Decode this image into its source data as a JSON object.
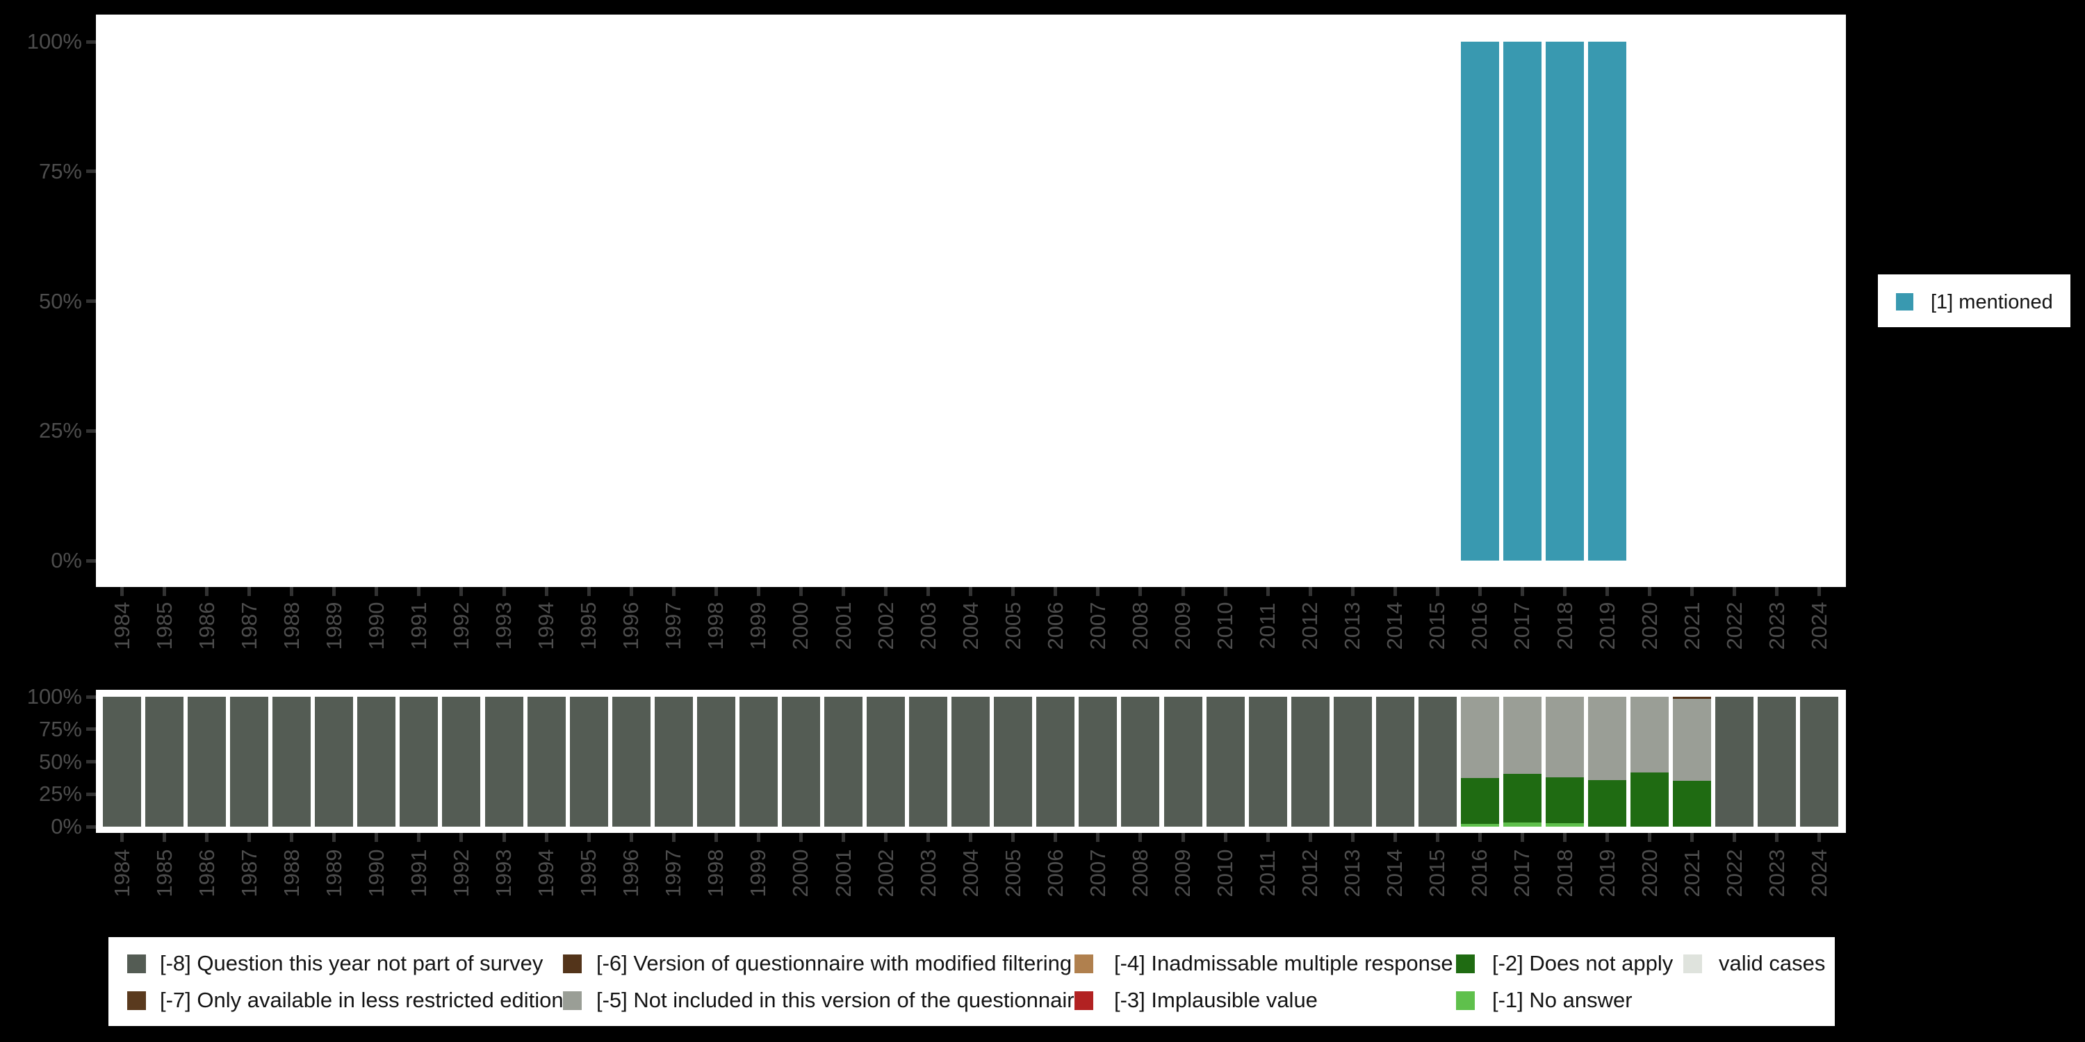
{
  "page": {
    "background_color": "#000000",
    "panel_color": "#ffffff",
    "axis_text_color": "#4d4d4d",
    "tick_color": "#333333",
    "legend_text_color": "#141414"
  },
  "colors": {
    "mentioned": "#3999B0",
    "-8": "#545C54",
    "-7": "#5A3A1E",
    "-6": "#53341A",
    "-5": "#9A9E96",
    "-4": "#B0804E",
    "-3": "#B22222",
    "-2": "#1F6B12",
    "-1": "#5FC04C",
    "valid": "#DFE3DD"
  },
  "chart_data": [
    {
      "type": "bar",
      "title": "",
      "xlabel": "",
      "ylabel": "",
      "ylim": [
        0,
        100
      ],
      "grid": false,
      "yticks": [
        "0%",
        "25%",
        "50%",
        "75%",
        "100%"
      ],
      "categories": [
        "1984",
        "1985",
        "1986",
        "1987",
        "1988",
        "1989",
        "1990",
        "1991",
        "1992",
        "1993",
        "1994",
        "1995",
        "1996",
        "1997",
        "1998",
        "1999",
        "2000",
        "2001",
        "2002",
        "2003",
        "2004",
        "2005",
        "2006",
        "2007",
        "2008",
        "2009",
        "2010",
        "2011",
        "2012",
        "2013",
        "2014",
        "2015",
        "2016",
        "2017",
        "2018",
        "2019",
        "2020",
        "2021",
        "2022",
        "2023",
        "2024"
      ],
      "legend_label": "[1] mentioned",
      "legend_position": "right",
      "series_note": "percent of valid cases answering [1] mentioned; bars only for 2016-2019 at 100%",
      "stacks_default": [],
      "stacks": {
        "2016": [
          [
            "mentioned",
            100
          ]
        ],
        "2017": [
          [
            "mentioned",
            100
          ]
        ],
        "2018": [
          [
            "mentioned",
            100
          ]
        ],
        "2019": [
          [
            "mentioned",
            100
          ]
        ]
      }
    },
    {
      "type": "stacked-bar-100",
      "title": "",
      "xlabel": "",
      "ylabel": "",
      "ylim": [
        0,
        100
      ],
      "grid": false,
      "yticks": [
        "0%",
        "25%",
        "50%",
        "75%",
        "100%"
      ],
      "categories": [
        "1984",
        "1985",
        "1986",
        "1987",
        "1988",
        "1989",
        "1990",
        "1991",
        "1992",
        "1993",
        "1994",
        "1995",
        "1996",
        "1997",
        "1998",
        "1999",
        "2000",
        "2001",
        "2002",
        "2003",
        "2004",
        "2005",
        "2006",
        "2007",
        "2008",
        "2009",
        "2010",
        "2011",
        "2012",
        "2013",
        "2014",
        "2015",
        "2016",
        "2017",
        "2018",
        "2019",
        "2020",
        "2021",
        "2022",
        "2023",
        "2024"
      ],
      "legend_position": "bottom",
      "stacks_note": "segments listed bottom-to-top as [category,percent]",
      "stacks_default": [
        [
          "-8",
          100
        ]
      ],
      "stacks": {
        "2016": [
          [
            "-1",
            2
          ],
          [
            "-2",
            35.5
          ],
          [
            "-5",
            62.5
          ]
        ],
        "2017": [
          [
            "-1",
            3
          ],
          [
            "-2",
            37.5
          ],
          [
            "-5",
            59.5
          ]
        ],
        "2018": [
          [
            "-1",
            2.5
          ],
          [
            "-2",
            35.5
          ],
          [
            "-5",
            62
          ]
        ],
        "2019": [
          [
            "-2",
            36
          ],
          [
            "-5",
            64
          ]
        ],
        "2020": [
          [
            "-2",
            41.5
          ],
          [
            "-5",
            58.5
          ]
        ],
        "2021": [
          [
            "-2",
            35.5
          ],
          [
            "-5",
            63
          ],
          [
            "-6",
            1.5
          ]
        ]
      },
      "legend_items": [
        {
          "key": "-8",
          "label": "[-8] Question this year not part of survey",
          "col": 0,
          "row": 0
        },
        {
          "key": "-7",
          "label": "[-7] Only available in less restricted edition",
          "col": 0,
          "row": 1
        },
        {
          "key": "-6",
          "label": "[-6] Version of questionnaire with modified filtering",
          "col": 1,
          "row": 0
        },
        {
          "key": "-5",
          "label": "[-5] Not included in this version of the questionnaire",
          "col": 1,
          "row": 1
        },
        {
          "key": "-4",
          "label": "[-4] Inadmissable multiple response",
          "col": 2,
          "row": 0
        },
        {
          "key": "-3",
          "label": "[-3] Implausible value",
          "col": 2,
          "row": 1
        },
        {
          "key": "-2",
          "label": "[-2] Does not apply",
          "col": 3,
          "row": 0
        },
        {
          "key": "-1",
          "label": "[-1] No answer",
          "col": 3,
          "row": 1
        },
        {
          "key": "valid",
          "label": "valid cases",
          "col": 4,
          "row": 0
        }
      ]
    }
  ]
}
